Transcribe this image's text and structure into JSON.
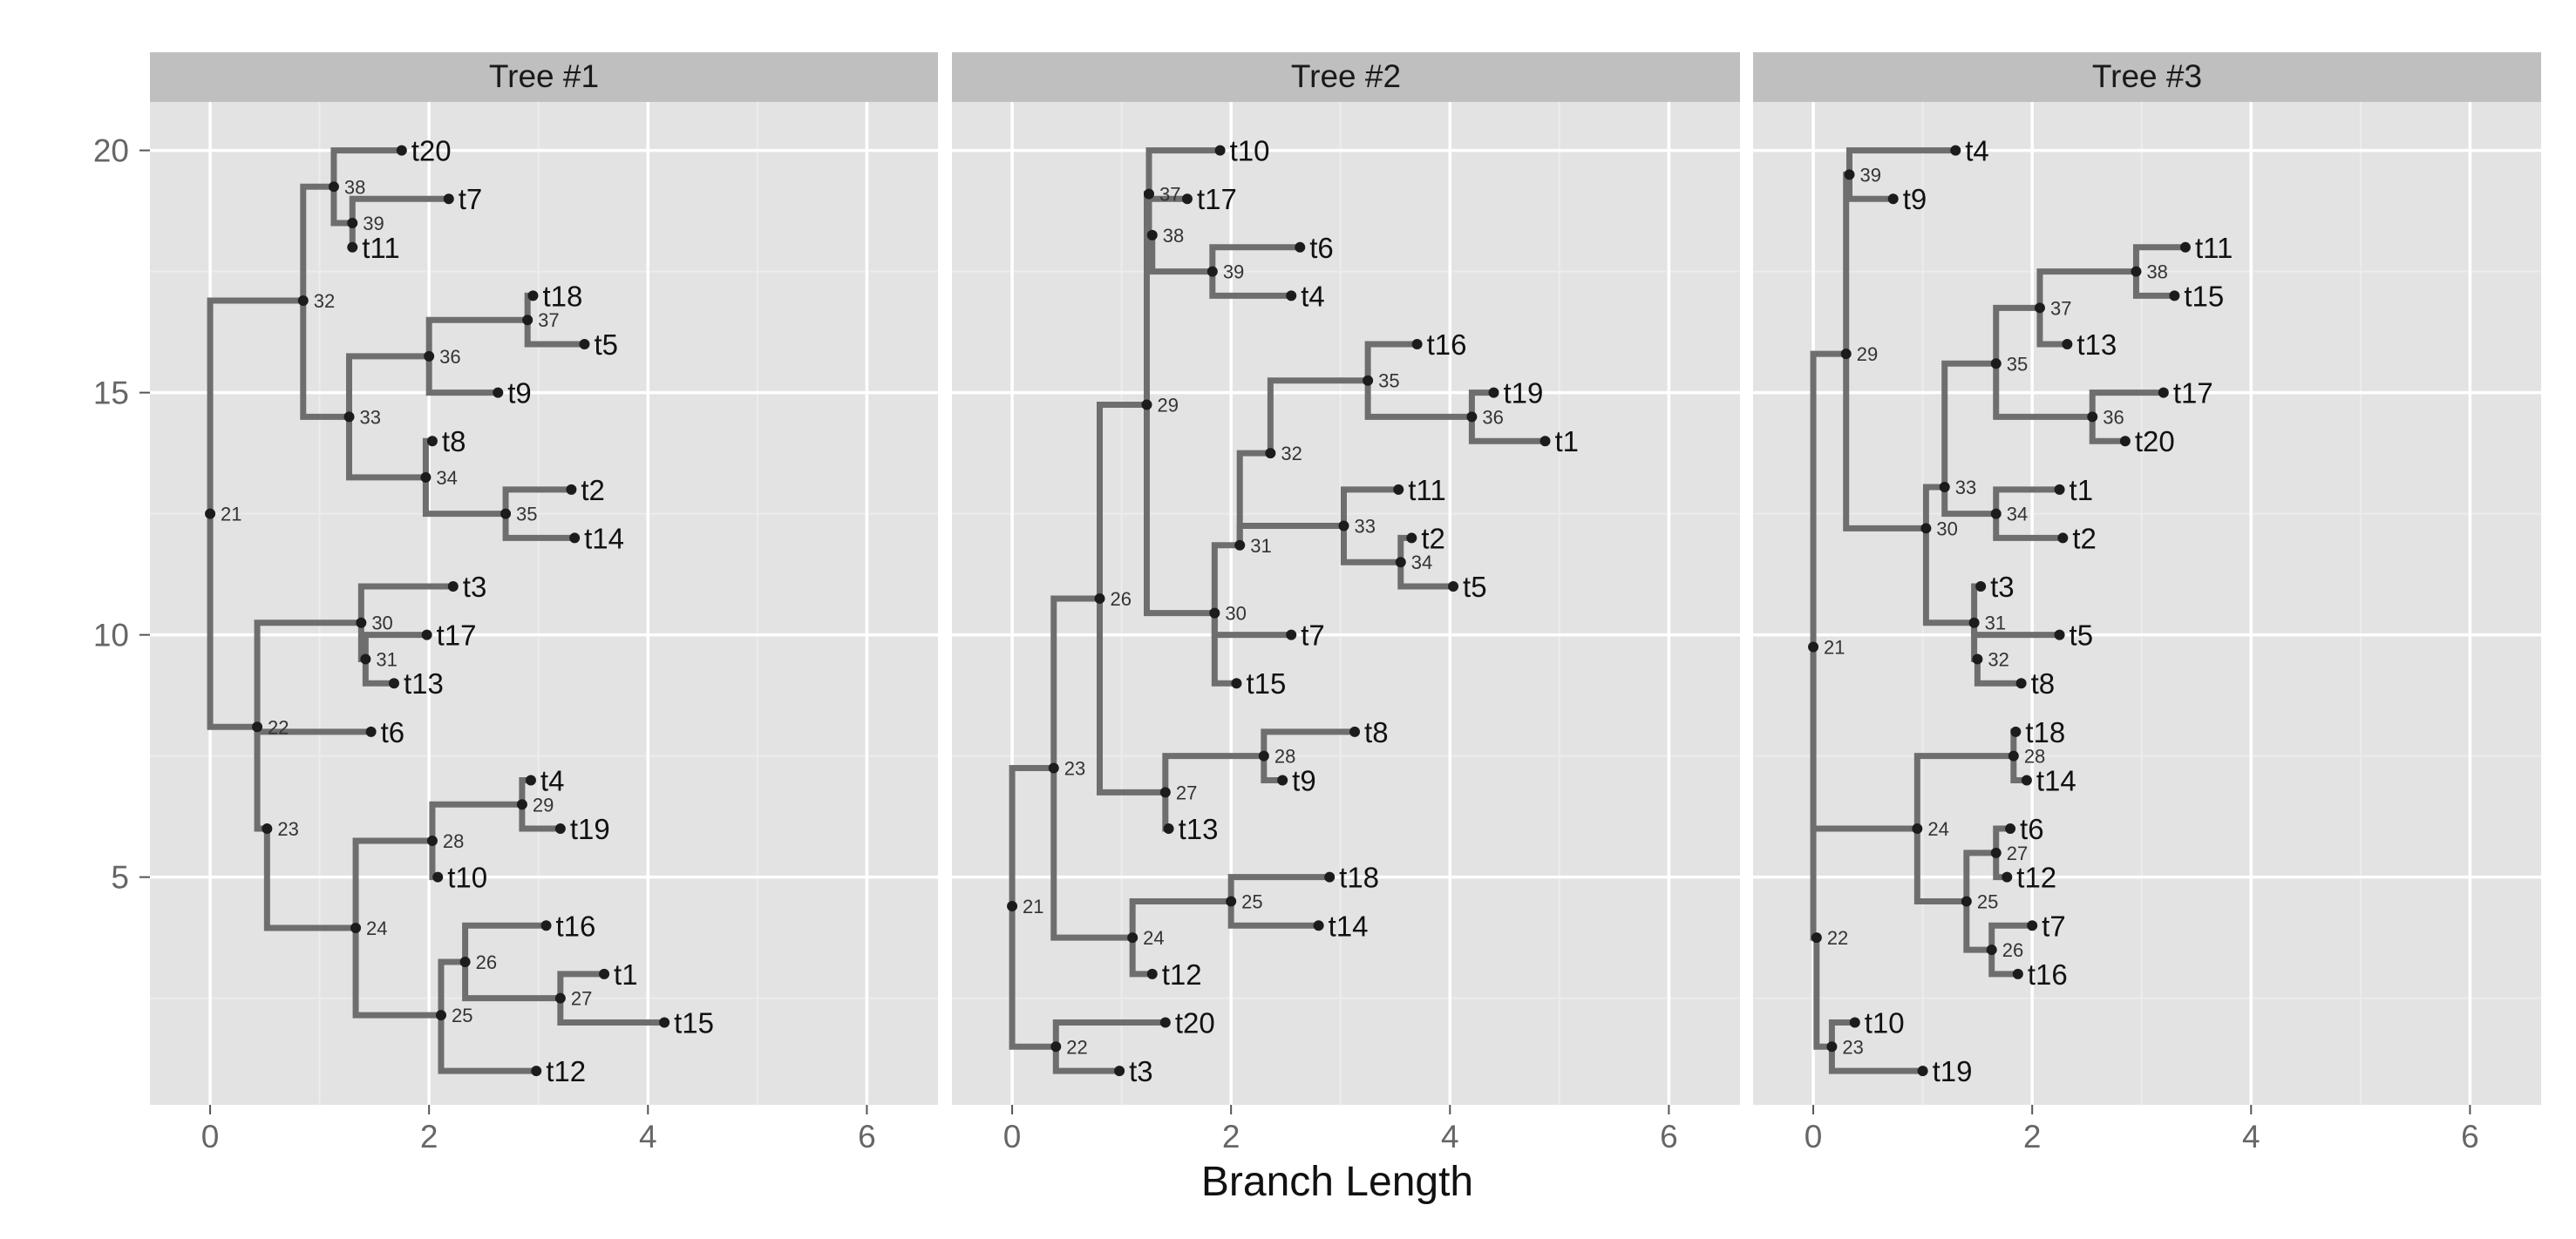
{
  "chart_data": {
    "type": "phylogenetic-tree",
    "xlabel": "Branch Length",
    "xlim": [
      -0.55,
      6.65
    ],
    "ylim": [
      0.3,
      21.0
    ],
    "x_ticks": [
      0,
      2,
      4,
      6
    ],
    "x_tick_labels": [
      "0",
      "2",
      "4",
      "6"
    ],
    "y_ticks": [
      5,
      10,
      15,
      20
    ],
    "y_tick_labels": [
      "5",
      "10",
      "15",
      "20"
    ],
    "grid": true,
    "branch_color": "#6e6e6e",
    "panel_background": "#e3e3e3",
    "strip_background": "#bfbfbf",
    "panels": [
      {
        "title": "Tree #1",
        "nodes": [
          {
            "id": "21",
            "x": 0.0,
            "y": 12.5
          },
          {
            "id": "32",
            "x": 0.85,
            "y": 16.9
          },
          {
            "id": "38",
            "x": 1.13,
            "y": 19.25
          },
          {
            "id": "39",
            "x": 1.3,
            "y": 18.5
          },
          {
            "id": "33",
            "x": 1.27,
            "y": 14.5
          },
          {
            "id": "36",
            "x": 2.0,
            "y": 15.75
          },
          {
            "id": "37",
            "x": 2.9,
            "y": 16.5
          },
          {
            "id": "34",
            "x": 1.97,
            "y": 13.25
          },
          {
            "id": "35",
            "x": 2.7,
            "y": 12.5
          },
          {
            "id": "22",
            "x": 0.43,
            "y": 8.1
          },
          {
            "id": "30",
            "x": 1.38,
            "y": 10.25
          },
          {
            "id": "31",
            "x": 1.42,
            "y": 9.5
          },
          {
            "id": "23",
            "x": 0.52,
            "y": 6.0
          },
          {
            "id": "24",
            "x": 1.33,
            "y": 3.95
          },
          {
            "id": "28",
            "x": 2.03,
            "y": 5.75
          },
          {
            "id": "29",
            "x": 2.85,
            "y": 6.5
          },
          {
            "id": "25",
            "x": 2.11,
            "y": 2.15
          },
          {
            "id": "26",
            "x": 2.33,
            "y": 3.25
          },
          {
            "id": "27",
            "x": 3.2,
            "y": 2.5
          }
        ],
        "tips": [
          {
            "label": "t20",
            "x": 1.75,
            "y": 20
          },
          {
            "label": "t7",
            "x": 2.18,
            "y": 19
          },
          {
            "label": "t11",
            "x": 1.3,
            "y": 18
          },
          {
            "label": "t18",
            "x": 2.95,
            "y": 17
          },
          {
            "label": "t5",
            "x": 3.42,
            "y": 16
          },
          {
            "label": "t9",
            "x": 2.63,
            "y": 15
          },
          {
            "label": "t8",
            "x": 2.03,
            "y": 14
          },
          {
            "label": "t2",
            "x": 3.3,
            "y": 13
          },
          {
            "label": "t14",
            "x": 3.33,
            "y": 12
          },
          {
            "label": "t3",
            "x": 2.22,
            "y": 11
          },
          {
            "label": "t17",
            "x": 1.98,
            "y": 10
          },
          {
            "label": "t13",
            "x": 1.68,
            "y": 9
          },
          {
            "label": "t6",
            "x": 1.47,
            "y": 8
          },
          {
            "label": "t4",
            "x": 2.93,
            "y": 7
          },
          {
            "label": "t19",
            "x": 3.2,
            "y": 6
          },
          {
            "label": "t10",
            "x": 2.08,
            "y": 5
          },
          {
            "label": "t16",
            "x": 3.07,
            "y": 4
          },
          {
            "label": "t1",
            "x": 3.6,
            "y": 3
          },
          {
            "label": "t15",
            "x": 4.15,
            "y": 2
          },
          {
            "label": "t12",
            "x": 2.98,
            "y": 1
          }
        ],
        "edges": [
          [
            "21",
            "32"
          ],
          [
            "21",
            "22"
          ],
          [
            "32",
            "38"
          ],
          [
            "32",
            "33"
          ],
          [
            "38",
            "t20"
          ],
          [
            "38",
            "39"
          ],
          [
            "39",
            "t7"
          ],
          [
            "39",
            "t11"
          ],
          [
            "33",
            "36"
          ],
          [
            "33",
            "34"
          ],
          [
            "36",
            "37"
          ],
          [
            "36",
            "t9"
          ],
          [
            "37",
            "t18"
          ],
          [
            "37",
            "t5"
          ],
          [
            "34",
            "t8"
          ],
          [
            "34",
            "35"
          ],
          [
            "35",
            "t2"
          ],
          [
            "35",
            "t14"
          ],
          [
            "22",
            "30"
          ],
          [
            "22",
            "t6"
          ],
          [
            "22",
            "23"
          ],
          [
            "30",
            "t3"
          ],
          [
            "30",
            "31"
          ],
          [
            "31",
            "t17"
          ],
          [
            "31",
            "t13"
          ],
          [
            "23",
            "24"
          ],
          [
            "24",
            "28"
          ],
          [
            "24",
            "25"
          ],
          [
            "28",
            "29"
          ],
          [
            "28",
            "t10"
          ],
          [
            "29",
            "t4"
          ],
          [
            "29",
            "t19"
          ],
          [
            "25",
            "26"
          ],
          [
            "25",
            "t12"
          ],
          [
            "26",
            "t16"
          ],
          [
            "26",
            "27"
          ],
          [
            "27",
            "t1"
          ],
          [
            "27",
            "t15"
          ]
        ]
      },
      {
        "title": "Tree #2",
        "nodes": [
          {
            "id": "21",
            "x": 0.0,
            "y": 4.4
          },
          {
            "id": "23",
            "x": 0.38,
            "y": 7.25
          },
          {
            "id": "26",
            "x": 0.8,
            "y": 10.75
          },
          {
            "id": "29",
            "x": 1.23,
            "y": 14.75
          },
          {
            "id": "37",
            "x": 1.25,
            "y": 19.1
          },
          {
            "id": "38",
            "x": 1.28,
            "y": 18.25
          },
          {
            "id": "39",
            "x": 1.83,
            "y": 17.5
          },
          {
            "id": "30",
            "x": 1.85,
            "y": 10.45
          },
          {
            "id": "31",
            "x": 2.08,
            "y": 11.85
          },
          {
            "id": "32",
            "x": 2.36,
            "y": 13.75
          },
          {
            "id": "35",
            "x": 3.25,
            "y": 15.25
          },
          {
            "id": "36",
            "x": 4.2,
            "y": 14.5
          },
          {
            "id": "33",
            "x": 3.03,
            "y": 12.25
          },
          {
            "id": "34",
            "x": 3.55,
            "y": 11.5
          },
          {
            "id": "27",
            "x": 1.4,
            "y": 6.75
          },
          {
            "id": "28",
            "x": 2.3,
            "y": 7.5
          },
          {
            "id": "24",
            "x": 1.1,
            "y": 3.75
          },
          {
            "id": "25",
            "x": 2.0,
            "y": 4.5
          },
          {
            "id": "22",
            "x": 0.4,
            "y": 1.5
          }
        ],
        "tips": [
          {
            "label": "t10",
            "x": 1.9,
            "y": 20
          },
          {
            "label": "t17",
            "x": 1.6,
            "y": 19
          },
          {
            "label": "t6",
            "x": 2.63,
            "y": 18
          },
          {
            "label": "t4",
            "x": 2.55,
            "y": 17
          },
          {
            "label": "t16",
            "x": 3.7,
            "y": 16
          },
          {
            "label": "t19",
            "x": 4.4,
            "y": 15
          },
          {
            "label": "t1",
            "x": 4.87,
            "y": 14
          },
          {
            "label": "t11",
            "x": 3.53,
            "y": 13
          },
          {
            "label": "t2",
            "x": 3.65,
            "y": 12
          },
          {
            "label": "t5",
            "x": 4.03,
            "y": 11
          },
          {
            "label": "t7",
            "x": 2.55,
            "y": 10
          },
          {
            "label": "t15",
            "x": 2.05,
            "y": 9
          },
          {
            "label": "t8",
            "x": 3.13,
            "y": 8
          },
          {
            "label": "t9",
            "x": 2.47,
            "y": 7
          },
          {
            "label": "t13",
            "x": 1.43,
            "y": 6
          },
          {
            "label": "t18",
            "x": 2.9,
            "y": 5
          },
          {
            "label": "t14",
            "x": 2.8,
            "y": 4
          },
          {
            "label": "t12",
            "x": 1.28,
            "y": 3
          },
          {
            "label": "t20",
            "x": 1.4,
            "y": 2
          },
          {
            "label": "t3",
            "x": 0.98,
            "y": 1
          }
        ],
        "edges": [
          [
            "21",
            "23"
          ],
          [
            "21",
            "22"
          ],
          [
            "23",
            "26"
          ],
          [
            "23",
            "24"
          ],
          [
            "26",
            "29"
          ],
          [
            "26",
            "27"
          ],
          [
            "29",
            "37"
          ],
          [
            "29",
            "30"
          ],
          [
            "37",
            "t10"
          ],
          [
            "37",
            "t17"
          ],
          [
            "37",
            "38"
          ],
          [
            "38",
            "39"
          ],
          [
            "39",
            "t6"
          ],
          [
            "39",
            "t4"
          ],
          [
            "30",
            "31"
          ],
          [
            "30",
            "t7"
          ],
          [
            "30",
            "t15"
          ],
          [
            "31",
            "32"
          ],
          [
            "31",
            "33"
          ],
          [
            "32",
            "35"
          ],
          [
            "35",
            "t16"
          ],
          [
            "35",
            "36"
          ],
          [
            "36",
            "t19"
          ],
          [
            "36",
            "t1"
          ],
          [
            "33",
            "t11"
          ],
          [
            "33",
            "34"
          ],
          [
            "34",
            "t2"
          ],
          [
            "34",
            "t5"
          ],
          [
            "27",
            "28"
          ],
          [
            "27",
            "t13"
          ],
          [
            "28",
            "t8"
          ],
          [
            "28",
            "t9"
          ],
          [
            "24",
            "25"
          ],
          [
            "24",
            "t12"
          ],
          [
            "25",
            "t18"
          ],
          [
            "25",
            "t14"
          ],
          [
            "22",
            "t20"
          ],
          [
            "22",
            "t3"
          ]
        ]
      },
      {
        "title": "Tree #3",
        "nodes": [
          {
            "id": "21",
            "x": 0.0,
            "y": 9.75
          },
          {
            "id": "29",
            "x": 0.3,
            "y": 15.8
          },
          {
            "id": "39",
            "x": 0.33,
            "y": 19.5
          },
          {
            "id": "30",
            "x": 1.03,
            "y": 12.2
          },
          {
            "id": "33",
            "x": 1.2,
            "y": 13.05
          },
          {
            "id": "35",
            "x": 1.67,
            "y": 15.6
          },
          {
            "id": "37",
            "x": 2.07,
            "y": 16.75
          },
          {
            "id": "38",
            "x": 2.95,
            "y": 17.5
          },
          {
            "id": "36",
            "x": 2.55,
            "y": 14.5
          },
          {
            "id": "34",
            "x": 1.67,
            "y": 12.5
          },
          {
            "id": "31",
            "x": 1.47,
            "y": 10.25
          },
          {
            "id": "32",
            "x": 1.5,
            "y": 9.5
          },
          {
            "id": "24",
            "x": 0.95,
            "y": 6.0
          },
          {
            "id": "28",
            "x": 1.83,
            "y": 7.5
          },
          {
            "id": "25",
            "x": 1.4,
            "y": 4.5
          },
          {
            "id": "27",
            "x": 1.67,
            "y": 5.5
          },
          {
            "id": "26",
            "x": 1.63,
            "y": 3.5
          },
          {
            "id": "22",
            "x": 0.03,
            "y": 3.75
          },
          {
            "id": "23",
            "x": 0.17,
            "y": 1.5
          }
        ],
        "tips": [
          {
            "label": "t4",
            "x": 1.3,
            "y": 20
          },
          {
            "label": "t9",
            "x": 0.73,
            "y": 19
          },
          {
            "label": "t11",
            "x": 3.4,
            "y": 18
          },
          {
            "label": "t15",
            "x": 3.3,
            "y": 17
          },
          {
            "label": "t13",
            "x": 2.32,
            "y": 16
          },
          {
            "label": "t17",
            "x": 3.2,
            "y": 15
          },
          {
            "label": "t20",
            "x": 2.85,
            "y": 14
          },
          {
            "label": "t1",
            "x": 2.25,
            "y": 13
          },
          {
            "label": "t2",
            "x": 2.28,
            "y": 12
          },
          {
            "label": "t3",
            "x": 1.53,
            "y": 11
          },
          {
            "label": "t5",
            "x": 2.25,
            "y": 10
          },
          {
            "label": "t8",
            "x": 1.9,
            "y": 9
          },
          {
            "label": "t18",
            "x": 1.85,
            "y": 8
          },
          {
            "label": "t14",
            "x": 1.95,
            "y": 7
          },
          {
            "label": "t6",
            "x": 1.8,
            "y": 6
          },
          {
            "label": "t12",
            "x": 1.77,
            "y": 5
          },
          {
            "label": "t7",
            "x": 2.0,
            "y": 4
          },
          {
            "label": "t16",
            "x": 1.87,
            "y": 3
          },
          {
            "label": "t10",
            "x": 0.38,
            "y": 2
          },
          {
            "label": "t19",
            "x": 1.0,
            "y": 1
          }
        ],
        "edges": [
          [
            "21",
            "29"
          ],
          [
            "21",
            "24"
          ],
          [
            "21",
            "22"
          ],
          [
            "29",
            "39"
          ],
          [
            "29",
            "30"
          ],
          [
            "39",
            "t4"
          ],
          [
            "39",
            "t9"
          ],
          [
            "30",
            "33"
          ],
          [
            "30",
            "31"
          ],
          [
            "33",
            "35"
          ],
          [
            "33",
            "34"
          ],
          [
            "35",
            "37"
          ],
          [
            "35",
            "36"
          ],
          [
            "37",
            "38"
          ],
          [
            "37",
            "t13"
          ],
          [
            "38",
            "t11"
          ],
          [
            "38",
            "t15"
          ],
          [
            "36",
            "t17"
          ],
          [
            "36",
            "t20"
          ],
          [
            "34",
            "t1"
          ],
          [
            "34",
            "t2"
          ],
          [
            "31",
            "t3"
          ],
          [
            "31",
            "t5"
          ],
          [
            "31",
            "32"
          ],
          [
            "32",
            "t8"
          ],
          [
            "24",
            "28"
          ],
          [
            "24",
            "25"
          ],
          [
            "28",
            "t18"
          ],
          [
            "28",
            "t14"
          ],
          [
            "25",
            "27"
          ],
          [
            "25",
            "26"
          ],
          [
            "27",
            "t6"
          ],
          [
            "27",
            "t12"
          ],
          [
            "26",
            "t7"
          ],
          [
            "26",
            "t16"
          ],
          [
            "22",
            "23"
          ],
          [
            "23",
            "t10"
          ],
          [
            "23",
            "t19"
          ]
        ]
      }
    ]
  }
}
